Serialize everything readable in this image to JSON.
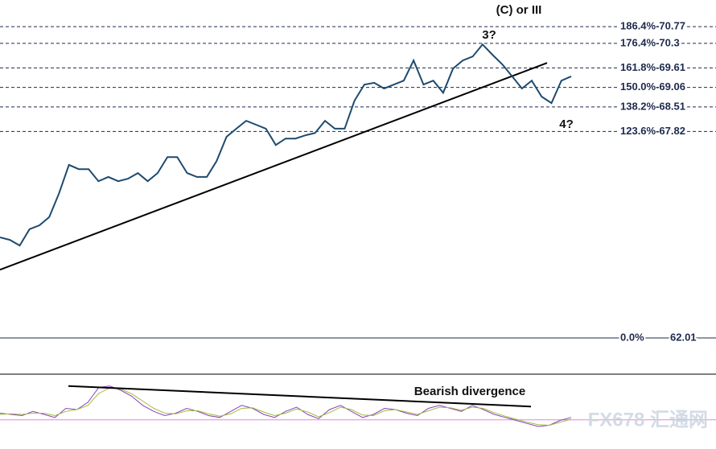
{
  "chart_data": {
    "type": "line",
    "values": [
      64.84,
      64.77,
      64.61,
      65.07,
      65.18,
      65.41,
      66.08,
      66.88,
      66.76,
      66.76,
      66.42,
      66.54,
      66.42,
      66.49,
      66.65,
      66.42,
      66.65,
      67.1,
      67.1,
      66.65,
      66.54,
      66.54,
      66.99,
      67.67,
      67.9,
      68.12,
      68.01,
      67.9,
      67.44,
      67.62,
      67.62,
      67.71,
      67.78,
      68.12,
      67.9,
      67.9,
      68.69,
      69.14,
      69.19,
      69.03,
      69.14,
      69.25,
      69.82,
      69.14,
      69.25,
      68.91,
      69.59,
      69.82,
      69.93,
      70.27,
      69.98,
      69.71,
      69.37,
      69.03,
      69.25,
      68.8,
      68.62,
      69.25,
      69.37
    ],
    "color": "#1e4a6e",
    "ylim": [
      60.99,
      71.52
    ],
    "levels": [
      {
        "label": "186.4%-70.77",
        "value": 70.77
      },
      {
        "label": "176.4%-70.3",
        "value": 70.3
      },
      {
        "label": "161.8%-69.61",
        "value": 69.61
      },
      {
        "label": "150.0%-69.06",
        "value": 69.06
      },
      {
        "label": "138.2%-68.51",
        "value": 68.51
      },
      {
        "label": "123.6%-67.82",
        "value": 67.82
      },
      {
        "label": "0.0%",
        "value": 62.01
      }
    ],
    "trendline": [
      63.93,
      69.75
    ],
    "annotations": [
      "(C) or III",
      "3?",
      "4?",
      "Bearish divergence"
    ],
    "oscillator": {
      "ylim": [
        0,
        100
      ],
      "level": 31,
      "divergence": [
        87,
        53
      ],
      "series": [
        {
          "color": "#8e3fb8",
          "values": [
            42,
            40,
            38,
            45,
            40,
            35,
            50,
            48,
            60,
            85,
            87,
            80,
            70,
            55,
            45,
            38,
            42,
            50,
            45,
            38,
            35,
            45,
            55,
            50,
            40,
            35,
            45,
            52,
            40,
            33,
            48,
            55,
            45,
            35,
            40,
            50,
            48,
            42,
            38,
            50,
            55,
            50,
            45,
            55,
            48,
            40,
            35,
            30,
            25,
            20,
            22,
            30,
            35
          ]
        },
        {
          "color": "#9bbf3c",
          "values": [
            40,
            41,
            40,
            42,
            42,
            38,
            45,
            48,
            55,
            75,
            84,
            82,
            74,
            62,
            50,
            42,
            41,
            46,
            46,
            41,
            37,
            41,
            50,
            51,
            44,
            38,
            42,
            49,
            44,
            36,
            43,
            52,
            48,
            39,
            38,
            46,
            48,
            44,
            40,
            46,
            52,
            51,
            47,
            52,
            50,
            43,
            37,
            32,
            27,
            23,
            22,
            27,
            32
          ]
        }
      ]
    },
    "watermark": "FX678 汇通网"
  }
}
